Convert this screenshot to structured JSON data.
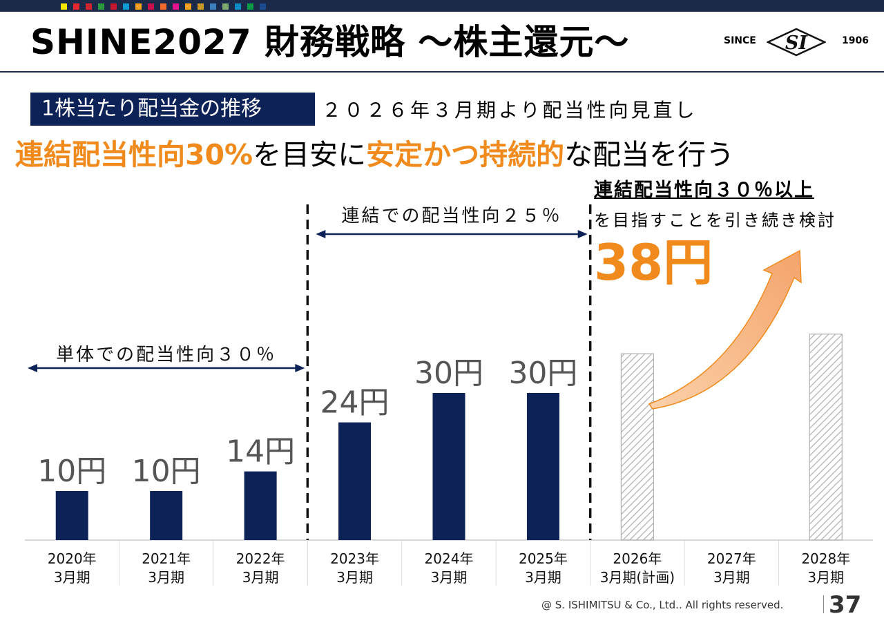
{
  "header": {
    "title": "SHINE2027  財務戦略  ～株主還元～",
    "logo": {
      "since": "SINCE",
      "mark": "SI",
      "year": "1906"
    },
    "accent_squares": [
      "#f6e600",
      "#e7262d",
      "#d2242e",
      "#2c9a3e",
      "#c5172e",
      "#0a9bd5",
      "#f4a11d",
      "#c7124d",
      "#f26a2d",
      "#e1148e",
      "#f7a21c",
      "#c99a27",
      "#3d7ebd",
      "#7ea86d",
      "#0c8dc4",
      "#0a9b47",
      "#1b4a8e"
    ]
  },
  "subtitle": {
    "box_label": "1株当たり配当金の推移",
    "text": "２０２６年３月期より配当性向見直し"
  },
  "headline": {
    "part1": "連結配当性向30%",
    "part2": "を目安に",
    "part3": "安定かつ持続的",
    "part4": "な配当を行う"
  },
  "annotation": {
    "target_line": "連結配当性向３０％以上",
    "target_sub": "を目指すことを引き続き検討",
    "plan_value": "38円"
  },
  "ranges": {
    "standalone": "単体での配当性向３０％",
    "consolidated": "連結での配当性向２５％"
  },
  "chart_data": {
    "type": "bar",
    "categories": [
      [
        "2020年",
        "3月期"
      ],
      [
        "2021年",
        "3月期"
      ],
      [
        "2022年",
        "3月期"
      ],
      [
        "2023年",
        "3月期"
      ],
      [
        "2024年",
        "3月期"
      ],
      [
        "2025年",
        "3月期"
      ],
      [
        "2026年",
        "3月期(計画)"
      ],
      [
        "2027年",
        "3月期"
      ],
      [
        "2028年",
        "3月期"
      ]
    ],
    "values": [
      10,
      10,
      14,
      24,
      30,
      30,
      38,
      null,
      42
    ],
    "value_labels": [
      "10円",
      "10円",
      "14円",
      "24円",
      "30円",
      "30円",
      "",
      "",
      ""
    ],
    "bar_styles": [
      "solid",
      "solid",
      "solid",
      "solid",
      "solid",
      "solid",
      "hatched",
      "none",
      "hatched"
    ],
    "ylim": [
      0,
      50
    ],
    "title": "",
    "xlabel": "",
    "ylabel": "",
    "colors": {
      "bar": "#0d2257",
      "hatch": "#b0b0b0",
      "highlight": "#f08a1c",
      "arrow": "#0d2257"
    }
  },
  "footer": {
    "copyright": "@ S. ISHIMITSU & Co., Ltd.. All rights reserved.",
    "page": "37"
  }
}
